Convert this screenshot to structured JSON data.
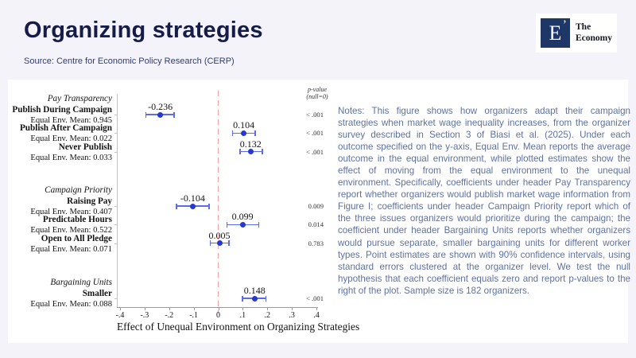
{
  "slide": {
    "title": "Organizing strategies",
    "source": "Source: Centre for Economic Policy Research (CERP)"
  },
  "logo": {
    "monogram": "E",
    "mark": "’",
    "name_line1": "The",
    "name_line2": "Economy"
  },
  "chart_data": {
    "type": "scatter",
    "variant": "forest-plot",
    "title": "",
    "xlabel": "Effect of Unequal Environment on Organizing Strategies",
    "ylabel": "",
    "xlim": [
      -0.4,
      0.4
    ],
    "grid": false,
    "ci_level": "90%",
    "point_color": "#2637d4",
    "ci_color": "#5d6ce6",
    "zero_line": {
      "value": 0,
      "color": "#f0a3a3",
      "style": "dashed"
    },
    "pvalue_header_line1": "p-value",
    "pvalue_header_line2": "(null=0)",
    "x_ticks": [
      {
        "v": -0.4,
        "label": "-.4"
      },
      {
        "v": -0.3,
        "label": "-.3"
      },
      {
        "v": -0.2,
        "label": "-.2"
      },
      {
        "v": -0.1,
        "label": "-.1"
      },
      {
        "v": 0,
        "label": "0"
      },
      {
        "v": 0.1,
        "label": ".1"
      },
      {
        "v": 0.2,
        "label": ".2"
      },
      {
        "v": 0.3,
        "label": ".3"
      },
      {
        "v": 0.4,
        "label": ".4"
      }
    ],
    "groups": [
      {
        "header": "Pay Transparency",
        "rows": [
          {
            "label": "Publish During Campaign",
            "mean_label": "Equal Env. Mean: 0.945",
            "estimate": -0.236,
            "estimate_label": "-0.236",
            "ci_low": -0.295,
            "ci_high": -0.18,
            "p_value": "< .001"
          },
          {
            "label": "Publish After Campaign",
            "mean_label": "Equal Env. Mean: 0.022",
            "estimate": 0.104,
            "estimate_label": "0.104",
            "ci_low": 0.059,
            "ci_high": 0.15,
            "p_value": "< .001"
          },
          {
            "label": "Never Publish",
            "mean_label": "Equal Env. Mean: 0.033",
            "estimate": 0.132,
            "estimate_label": "0.132",
            "ci_low": 0.089,
            "ci_high": 0.179,
            "p_value": "< .001"
          }
        ]
      },
      {
        "header": "Campaign Priority",
        "rows": [
          {
            "label": "Raising Pay",
            "mean_label": "Equal Env. Mean: 0.407",
            "estimate": -0.104,
            "estimate_label": "-0.104",
            "ci_low": -0.17,
            "ci_high": -0.038,
            "p_value": "0.009"
          },
          {
            "label": "Predictable Hours",
            "mean_label": "Equal Env. Mean: 0.522",
            "estimate": 0.099,
            "estimate_label": "0.099",
            "ci_low": 0.035,
            "ci_high": 0.165,
            "p_value": "0.014"
          },
          {
            "label": "Open to All Pledge",
            "mean_label": "Equal Env. Mean: 0.071",
            "estimate": 0.005,
            "estimate_label": "0.005",
            "ci_low": -0.032,
            "ci_high": 0.043,
            "p_value": "0.783"
          }
        ]
      },
      {
        "header": "Bargaining Units",
        "rows": [
          {
            "label": "Smaller",
            "mean_label": "Equal Env. Mean: 0.088",
            "estimate": 0.148,
            "estimate_label": "0.148",
            "ci_low": 0.098,
            "ci_high": 0.195,
            "p_value": "< .001"
          }
        ]
      }
    ]
  },
  "notes": {
    "text": "Notes: This figure shows how organizers adapt their campaign strategies when market wage inequality increases, from the organizer survey described in Section 3 of Biasi et al. (2025). Under each outcome specified on the y-axis, Equal Env. Mean reports the average outcome in the equal environment, while plotted estimates show the effect of moving from the equal environment to the unequal environment. Specifically, coefficients under header Pay Transparency report whether organizers would publish market wage information from Figure I; coefficients under header Campaign Priority report which of the three issues organizers would prioritize during the campaign; the coefficient under header Bargaining Units reports whether organizers would pursue separate, smaller bargaining units for different worker types. Point estimates are shown with 90% confidence intervals, using standard errors clustered at the organizer level. We test the null hypothesis that each coefficient equals zero and report p-values to the right of the plot. Sample size is 182 organizers."
  }
}
